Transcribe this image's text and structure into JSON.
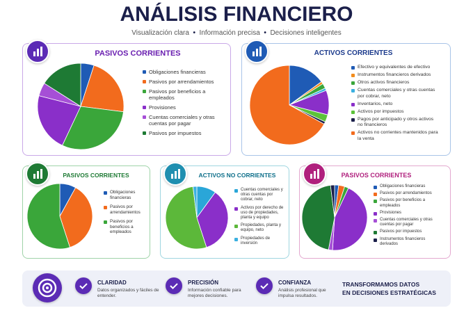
{
  "header": {
    "title": "ANÁLISIS FINANCIERO",
    "subtitle": [
      "Visualización clara",
      "Información precisa",
      "Decisiones inteligentes"
    ]
  },
  "chart_data": [
    {
      "type": "pie",
      "title": "PASIVOS CORRIENTES",
      "categories": [
        "Obligaciones financieras",
        "Pasivos por arrendamientos",
        "Pasivos por beneficios a empleados",
        "Provisiones",
        "Cuentas comerciales y otras cuentas por pagar",
        "Pasivos por impuestos"
      ],
      "values": [
        5,
        22,
        30,
        22,
        5,
        16
      ],
      "colors": [
        "#1f5bb5",
        "#f26b1d",
        "#3aa63a",
        "#8a2fc9",
        "#a64fd6",
        "#1e7a34"
      ]
    },
    {
      "type": "pie",
      "title": "ACTIVOS CORRIENTES",
      "categories": [
        "Efectivo y equivalentes de efectivo",
        "Instrumentos financieros derivados",
        "Otros activos financieros",
        "Cuentas comerciales y otras cuentas por cobrar, neto",
        "Inventarios, neto",
        "Activos por impuestos",
        "Pagos por anticipado y otros activos no financieros",
        "Activos no corrientes mantenidos para la venta"
      ],
      "values": [
        15,
        1,
        2,
        1,
        10,
        3,
        1,
        67
      ],
      "colors": [
        "#1f5bb5",
        "#f28c1d",
        "#3aa63a",
        "#3bb0e0",
        "#8a2fc9",
        "#5cc23a",
        "#1b1f4a",
        "#f26b1d"
      ]
    },
    {
      "type": "pie",
      "title": "PASIVOS CORRIENTES",
      "categories": [
        "Obligaciones financieras",
        "Pasivos por arrendamientos",
        "Pasivos por beneficios a empleados"
      ],
      "values": [
        8,
        37,
        55
      ],
      "colors": [
        "#1f5bb5",
        "#f26b1d",
        "#3aa63a"
      ]
    },
    {
      "type": "pie",
      "title": "ACTIVOS NO CORRIENTES",
      "categories": [
        "Cuentas comerciales y otras cuentas por cobrar, neto",
        "Activos por derecho de uso de propiedades, planta y equipo",
        "Propiedades, planta y equipo, neto",
        "Propiedades de inversión"
      ],
      "values": [
        10,
        35,
        53,
        2
      ],
      "colors": [
        "#2aa6d8",
        "#8a2fc9",
        "#5cb83a",
        "#3bb0e0"
      ]
    },
    {
      "type": "pie",
      "title": "PASIVOS CORRIENTES",
      "categories": [
        "Obligaciones financieras",
        "Pasivos por arrendamientos",
        "Pasivos por beneficios a empleados",
        "Provisiones",
        "Cuentas comerciales y otras cuentas por pagar",
        "Pasivos por impuestos",
        "Instrumentos financieros derivados"
      ],
      "values": [
        2,
        3,
        2,
        44,
        2,
        45,
        2
      ],
      "colors": [
        "#1f5bb5",
        "#f26b1d",
        "#3aa63a",
        "#8a2fc9",
        "#a64fd6",
        "#1e7a34",
        "#1b1f4a"
      ]
    }
  ],
  "footer": {
    "items": [
      {
        "title": "CLARIDAD",
        "text": "Datos organizados y fáciles de entender."
      },
      {
        "title": "PRECISIÓN",
        "text": "Información confiable para mejores decisiones."
      },
      {
        "title": "CONFIANZA",
        "text": "Análisis profesional que impulsa resultados."
      }
    ],
    "slogan": [
      "TRANSFORMAMOS DATOS",
      "EN DECISIONES ESTRATÉGICAS"
    ]
  }
}
